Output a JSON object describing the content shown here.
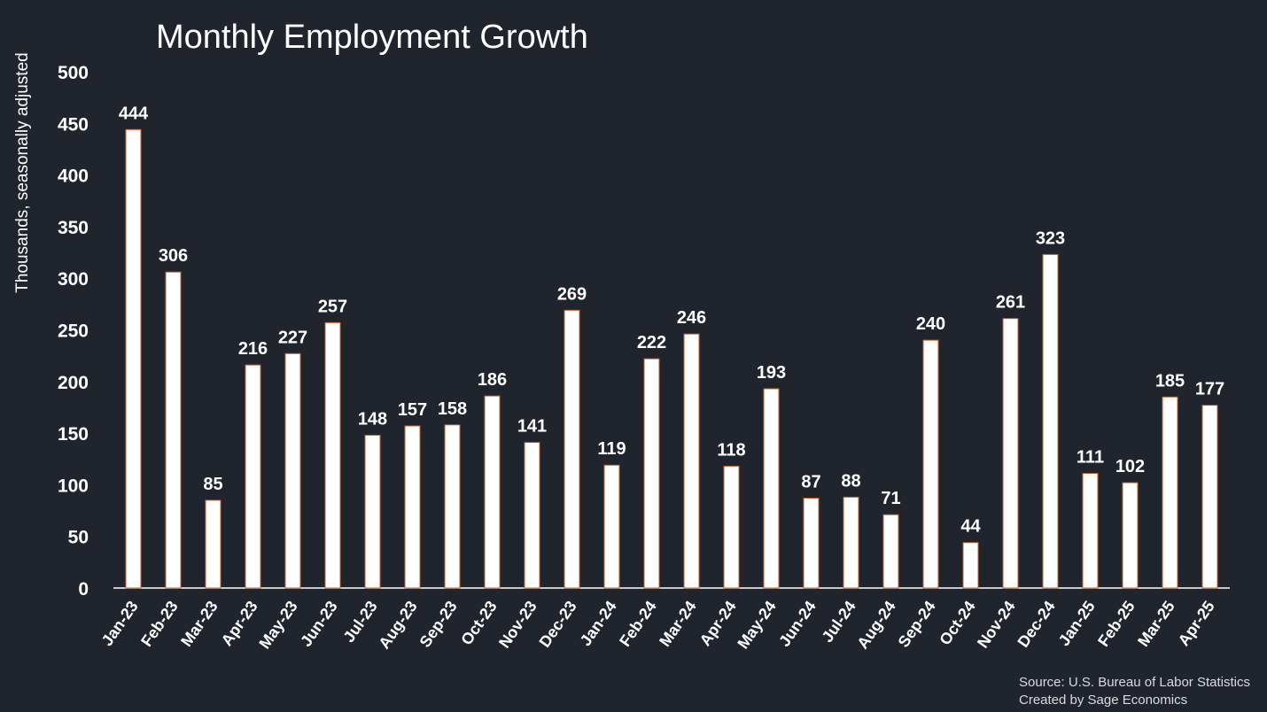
{
  "chart_data": {
    "type": "bar",
    "title": "Monthly Employment Growth",
    "ylabel": "Thousands, seasonally adjusted",
    "xlabel": "",
    "ylim": [
      0,
      500
    ],
    "yticks": [
      0,
      50,
      100,
      150,
      200,
      250,
      300,
      350,
      400,
      450,
      500
    ],
    "grid": false,
    "categories": [
      "Jan-23",
      "Feb-23",
      "Mar-23",
      "Apr-23",
      "May-23",
      "Jun-23",
      "Jul-23",
      "Aug-23",
      "Sep-23",
      "Oct-23",
      "Nov-23",
      "Dec-23",
      "Jan-24",
      "Feb-24",
      "Mar-24",
      "Apr-24",
      "May-24",
      "Jun-24",
      "Jul-24",
      "Aug-24",
      "Sep-24",
      "Oct-24",
      "Nov-24",
      "Dec-24",
      "Jan-25",
      "Feb-25",
      "Mar-25",
      "Apr-25"
    ],
    "values": [
      444,
      306,
      85,
      216,
      227,
      257,
      148,
      157,
      158,
      186,
      141,
      269,
      119,
      222,
      246,
      118,
      193,
      87,
      88,
      71,
      240,
      44,
      261,
      323,
      111,
      102,
      185,
      177
    ],
    "bar_color": "#ffffff",
    "bar_edge_color": "#c0632e",
    "background": "#20242d"
  },
  "source_line1": "Source: U.S. Bureau of Labor Statistics",
  "source_line2": "Created by Sage Economics"
}
